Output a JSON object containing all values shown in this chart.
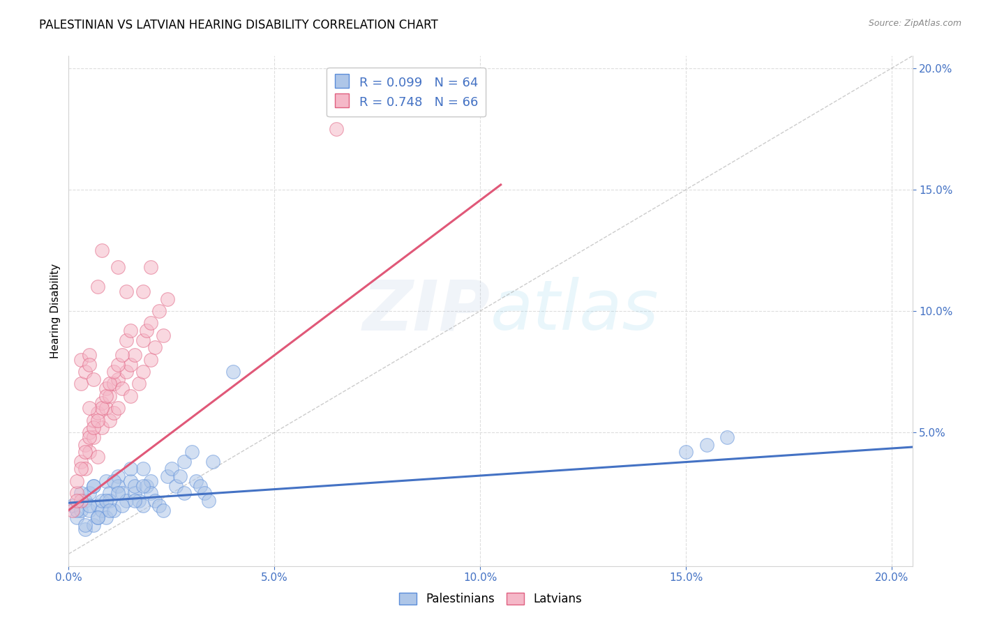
{
  "title": "PALESTINIAN VS LATVIAN HEARING DISABILITY CORRELATION CHART",
  "source": "Source: ZipAtlas.com",
  "ylabel": "Hearing Disability",
  "xlim": [
    0.0,
    0.205
  ],
  "ylim": [
    -0.005,
    0.205
  ],
  "xtick_vals": [
    0.0,
    0.05,
    0.1,
    0.15,
    0.2
  ],
  "ytick_vals": [
    0.05,
    0.1,
    0.15,
    0.2
  ],
  "legend_r1": "R = 0.099",
  "legend_n1": "N = 64",
  "legend_r2": "R = 0.748",
  "legend_n2": "N = 66",
  "blue_fill": "#aec6e8",
  "blue_edge": "#5b8dd9",
  "pink_fill": "#f5b8c8",
  "pink_edge": "#e06080",
  "blue_line": "#4472c4",
  "pink_line": "#e05878",
  "title_fontsize": 12,
  "tick_fontsize": 11,
  "blue_scatter": [
    [
      0.001,
      0.02
    ],
    [
      0.002,
      0.015
    ],
    [
      0.003,
      0.018
    ],
    [
      0.004,
      0.022
    ],
    [
      0.004,
      0.01
    ],
    [
      0.005,
      0.025
    ],
    [
      0.005,
      0.018
    ],
    [
      0.006,
      0.012
    ],
    [
      0.006,
      0.028
    ],
    [
      0.007,
      0.02
    ],
    [
      0.007,
      0.015
    ],
    [
      0.008,
      0.018
    ],
    [
      0.008,
      0.022
    ],
    [
      0.009,
      0.03
    ],
    [
      0.009,
      0.015
    ],
    [
      0.01,
      0.025
    ],
    [
      0.01,
      0.022
    ],
    [
      0.011,
      0.018
    ],
    [
      0.012,
      0.032
    ],
    [
      0.012,
      0.028
    ],
    [
      0.013,
      0.025
    ],
    [
      0.014,
      0.022
    ],
    [
      0.015,
      0.03
    ],
    [
      0.016,
      0.025
    ],
    [
      0.016,
      0.028
    ],
    [
      0.017,
      0.022
    ],
    [
      0.018,
      0.02
    ],
    [
      0.018,
      0.035
    ],
    [
      0.019,
      0.028
    ],
    [
      0.02,
      0.03
    ],
    [
      0.02,
      0.025
    ],
    [
      0.021,
      0.022
    ],
    [
      0.022,
      0.02
    ],
    [
      0.023,
      0.018
    ],
    [
      0.024,
      0.032
    ],
    [
      0.025,
      0.035
    ],
    [
      0.026,
      0.028
    ],
    [
      0.027,
      0.032
    ],
    [
      0.028,
      0.038
    ],
    [
      0.028,
      0.025
    ],
    [
      0.03,
      0.042
    ],
    [
      0.031,
      0.03
    ],
    [
      0.032,
      0.028
    ],
    [
      0.033,
      0.025
    ],
    [
      0.034,
      0.022
    ],
    [
      0.035,
      0.038
    ],
    [
      0.002,
      0.018
    ],
    [
      0.003,
      0.025
    ],
    [
      0.004,
      0.012
    ],
    [
      0.005,
      0.02
    ],
    [
      0.006,
      0.028
    ],
    [
      0.007,
      0.015
    ],
    [
      0.009,
      0.022
    ],
    [
      0.01,
      0.018
    ],
    [
      0.011,
      0.03
    ],
    [
      0.012,
      0.025
    ],
    [
      0.013,
      0.02
    ],
    [
      0.015,
      0.035
    ],
    [
      0.016,
      0.022
    ],
    [
      0.018,
      0.028
    ],
    [
      0.15,
      0.042
    ],
    [
      0.155,
      0.045
    ],
    [
      0.16,
      0.048
    ],
    [
      0.04,
      0.075
    ]
  ],
  "pink_scatter": [
    [
      0.001,
      0.018
    ],
    [
      0.002,
      0.025
    ],
    [
      0.002,
      0.03
    ],
    [
      0.003,
      0.022
    ],
    [
      0.003,
      0.038
    ],
    [
      0.004,
      0.045
    ],
    [
      0.004,
      0.035
    ],
    [
      0.005,
      0.05
    ],
    [
      0.005,
      0.042
    ],
    [
      0.006,
      0.055
    ],
    [
      0.006,
      0.048
    ],
    [
      0.007,
      0.058
    ],
    [
      0.007,
      0.04
    ],
    [
      0.008,
      0.052
    ],
    [
      0.008,
      0.062
    ],
    [
      0.009,
      0.06
    ],
    [
      0.009,
      0.068
    ],
    [
      0.01,
      0.055
    ],
    [
      0.01,
      0.065
    ],
    [
      0.011,
      0.07
    ],
    [
      0.011,
      0.058
    ],
    [
      0.012,
      0.072
    ],
    [
      0.012,
      0.06
    ],
    [
      0.013,
      0.068
    ],
    [
      0.014,
      0.075
    ],
    [
      0.015,
      0.078
    ],
    [
      0.015,
      0.065
    ],
    [
      0.016,
      0.082
    ],
    [
      0.017,
      0.07
    ],
    [
      0.018,
      0.088
    ],
    [
      0.018,
      0.075
    ],
    [
      0.019,
      0.092
    ],
    [
      0.02,
      0.08
    ],
    [
      0.02,
      0.095
    ],
    [
      0.021,
      0.085
    ],
    [
      0.022,
      0.1
    ],
    [
      0.023,
      0.09
    ],
    [
      0.024,
      0.105
    ],
    [
      0.002,
      0.022
    ],
    [
      0.003,
      0.035
    ],
    [
      0.004,
      0.042
    ],
    [
      0.005,
      0.048
    ],
    [
      0.006,
      0.052
    ],
    [
      0.007,
      0.055
    ],
    [
      0.008,
      0.06
    ],
    [
      0.009,
      0.065
    ],
    [
      0.01,
      0.07
    ],
    [
      0.011,
      0.075
    ],
    [
      0.012,
      0.078
    ],
    [
      0.013,
      0.082
    ],
    [
      0.014,
      0.088
    ],
    [
      0.015,
      0.092
    ],
    [
      0.003,
      0.08
    ],
    [
      0.003,
      0.07
    ],
    [
      0.004,
      0.075
    ],
    [
      0.005,
      0.082
    ],
    [
      0.005,
      0.078
    ],
    [
      0.006,
      0.072
    ],
    [
      0.007,
      0.11
    ],
    [
      0.008,
      0.125
    ],
    [
      0.012,
      0.118
    ],
    [
      0.014,
      0.108
    ],
    [
      0.005,
      0.06
    ],
    [
      0.065,
      0.175
    ],
    [
      0.018,
      0.108
    ],
    [
      0.02,
      0.118
    ]
  ],
  "dashed_line": [
    [
      0.0,
      0.0
    ],
    [
      0.205,
      0.205
    ]
  ]
}
